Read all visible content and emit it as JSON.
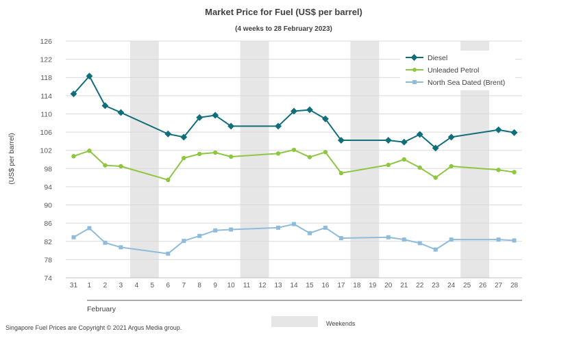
{
  "chart_data": {
    "type": "line",
    "title": "Market Price for Fuel (US$ per barrel)",
    "subtitle": "(4 weeks to 28 February 2023)",
    "ylabel": "(US$ per barrel)",
    "xlabel": "",
    "month_label": "February",
    "ylim": [
      74,
      126
    ],
    "yticks": [
      74,
      78,
      82,
      86,
      90,
      94,
      98,
      102,
      106,
      110,
      114,
      118,
      122,
      126
    ],
    "grid": "horizontal",
    "legend_position": "top-right",
    "categories": [
      "31",
      "1",
      "2",
      "3",
      "4",
      "5",
      "6",
      "7",
      "8",
      "9",
      "10",
      "11",
      "12",
      "13",
      "14",
      "15",
      "16",
      "17",
      "18",
      "19",
      "20",
      "21",
      "22",
      "23",
      "24",
      "25",
      "26",
      "27",
      "28"
    ],
    "weekend_categories": [
      [
        "4",
        "5"
      ],
      [
        "11",
        "12"
      ],
      [
        "18",
        "19"
      ],
      [
        "25",
        "26"
      ]
    ],
    "weekend_label": "Weekends",
    "series": [
      {
        "name": "Diesel",
        "color": "#0f6e7a",
        "marker": "diamond",
        "values": [
          114.4,
          118.3,
          111.8,
          110.3,
          null,
          null,
          105.6,
          104.9,
          109.2,
          109.7,
          107.3,
          null,
          null,
          107.3,
          110.6,
          110.9,
          108.9,
          104.2,
          null,
          null,
          104.2,
          103.8,
          105.5,
          102.5,
          104.9,
          null,
          null,
          106.5,
          105.9
        ]
      },
      {
        "name": "Unleaded Petrol",
        "color": "#8dc63f",
        "marker": "circle",
        "values": [
          100.7,
          101.9,
          98.7,
          98.5,
          null,
          null,
          95.5,
          100.3,
          101.2,
          101.5,
          100.6,
          null,
          null,
          101.3,
          102.1,
          100.5,
          101.6,
          97.0,
          null,
          null,
          98.8,
          100.0,
          98.2,
          96.0,
          98.5,
          null,
          null,
          97.7,
          97.2
        ]
      },
      {
        "name": "North Sea Dated (Brent)",
        "color": "#8fbcdb",
        "marker": "square",
        "values": [
          82.9,
          84.9,
          81.7,
          80.7,
          null,
          null,
          79.3,
          82.1,
          83.2,
          84.4,
          84.6,
          null,
          null,
          85.0,
          85.8,
          83.8,
          85.0,
          82.7,
          null,
          null,
          82.9,
          82.4,
          81.6,
          80.2,
          82.4,
          null,
          null,
          82.4,
          82.2
        ]
      }
    ]
  },
  "footer": {
    "copyright": "Singapore Fuel Prices are Copyright © 2021 Argus Media group."
  }
}
